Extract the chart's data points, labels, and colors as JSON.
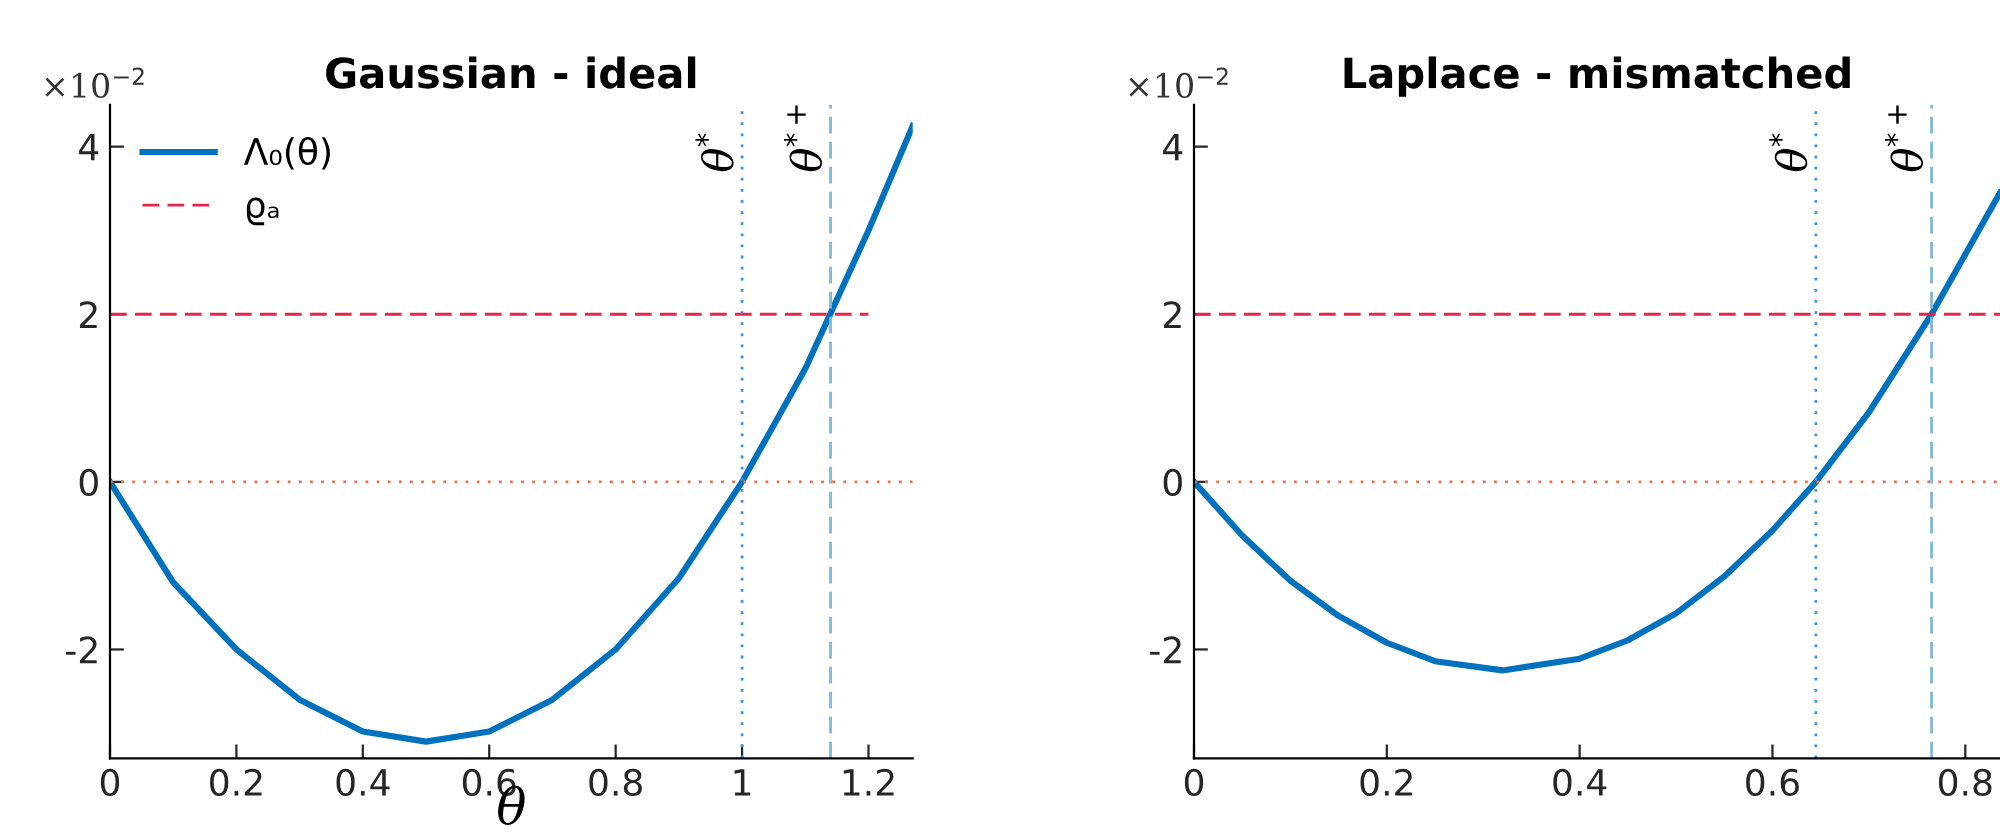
{
  "chart_data": [
    {
      "type": "line",
      "title": "Gaussian - ideal",
      "xlabel": "θ",
      "annotations": [
        "×10$^{−2}$"
      ],
      "series": [
        {
          "name": "Λ₀(θ)",
          "color": "#0072bd",
          "x": [
            0,
            0.1,
            0.2,
            0.3,
            0.4,
            0.5,
            0.6,
            0.7,
            0.8,
            0.9,
            1.0,
            1.1,
            1.2,
            1.27
          ],
          "values": [
            0,
            -1.2,
            -2.0,
            -2.6,
            -2.98,
            -3.1,
            -2.98,
            -2.6,
            -2.0,
            -1.15,
            0,
            1.35,
            3.0,
            4.25
          ]
        },
        {
          "name": "ϱₐ",
          "color": "#e8264a",
          "line_style": "dashed",
          "x": [
            0,
            1.2
          ],
          "values": [
            2,
            2
          ]
        }
      ],
      "ref_lines": [
        {
          "axis": "y",
          "value": 0,
          "color": "#e8734a",
          "line_style": "dotted"
        },
        {
          "axis": "x",
          "value": 1.0,
          "label": "θ$^{*}$",
          "color": "#4a90d9",
          "line_style": "dotted"
        },
        {
          "axis": "x",
          "value": 1.14,
          "label": "θ$^{*+}$",
          "color": "#7fb8d8",
          "line_style": "dashed"
        }
      ],
      "xlim": [
        0,
        1.27
      ],
      "ylim": [
        -3.3,
        4.5
      ],
      "xticks": [
        0,
        0.2,
        0.4,
        0.6,
        0.8,
        1,
        1.2
      ],
      "yticks": [
        -2,
        0,
        2,
        4
      ],
      "legend": "top left",
      "grid": false
    },
    {
      "type": "line",
      "title": "Laplace - mismatched",
      "annotations": [
        "×10$^{−2}$"
      ],
      "series": [
        {
          "color": "#0072bd",
          "x": [
            0,
            0.05,
            0.1,
            0.15,
            0.2,
            0.25,
            0.32,
            0.4,
            0.45,
            0.5,
            0.55,
            0.6,
            0.645,
            0.7,
            0.765,
            0.836
          ],
          "values": [
            0,
            -0.64,
            -1.18,
            -1.6,
            -1.92,
            -2.14,
            -2.25,
            -2.11,
            -1.89,
            -1.57,
            -1.13,
            -0.58,
            0,
            0.83,
            2.0,
            3.45
          ]
        }
      ],
      "ref_lines": [
        {
          "axis": "y",
          "value": 2,
          "color": "#e8264a",
          "line_style": "dashed"
        },
        {
          "axis": "y",
          "value": 0,
          "color": "#e8734a",
          "line_style": "dotted"
        },
        {
          "axis": "x",
          "value": 0.645,
          "label": "θ$^{*}$",
          "color": "#4a90d9",
          "line_style": "dotted"
        },
        {
          "axis": "x",
          "value": 0.765,
          "label": "θ$^{*+}$",
          "color": "#7fb8d8",
          "line_style": "dashed"
        }
      ],
      "xlim": [
        0,
        0.836
      ],
      "ylim": [
        -3.3,
        4.5
      ],
      "xticks": [
        0,
        0.2,
        0.4,
        0.6,
        0.8
      ],
      "yticks": [
        -2,
        0,
        2,
        4
      ],
      "grid": false
    }
  ]
}
